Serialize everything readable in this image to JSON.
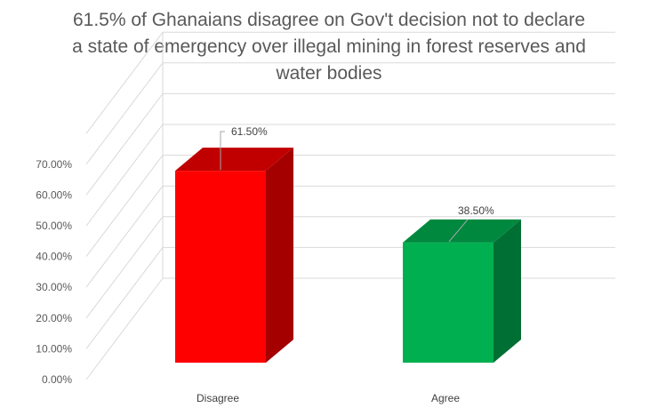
{
  "chart_data": {
    "type": "bar",
    "title_lines": [
      "61.5% of Ghanaians disagree on Gov't decision not to declare",
      "a state of emergency over illegal mining in forest reserves and",
      "water bodies"
    ],
    "categories": [
      "Disagree",
      "Agree"
    ],
    "values": [
      61.5,
      38.5
    ],
    "data_labels": [
      "61.50%",
      "38.50%"
    ],
    "y_ticks": [
      "0.00%",
      "10.00%",
      "20.00%",
      "30.00%",
      "40.00%",
      "50.00%",
      "60.00%",
      "70.00%"
    ],
    "ylim": [
      0,
      80
    ],
    "grid": true,
    "legend": "none",
    "colors": {
      "bars": [
        "#FF0000",
        "#00B050"
      ],
      "bar_tops": [
        "#C00000",
        "#00883F"
      ],
      "bar_sides": [
        "#A50000",
        "#006F33"
      ],
      "gridline": "#D9D9D9"
    }
  }
}
